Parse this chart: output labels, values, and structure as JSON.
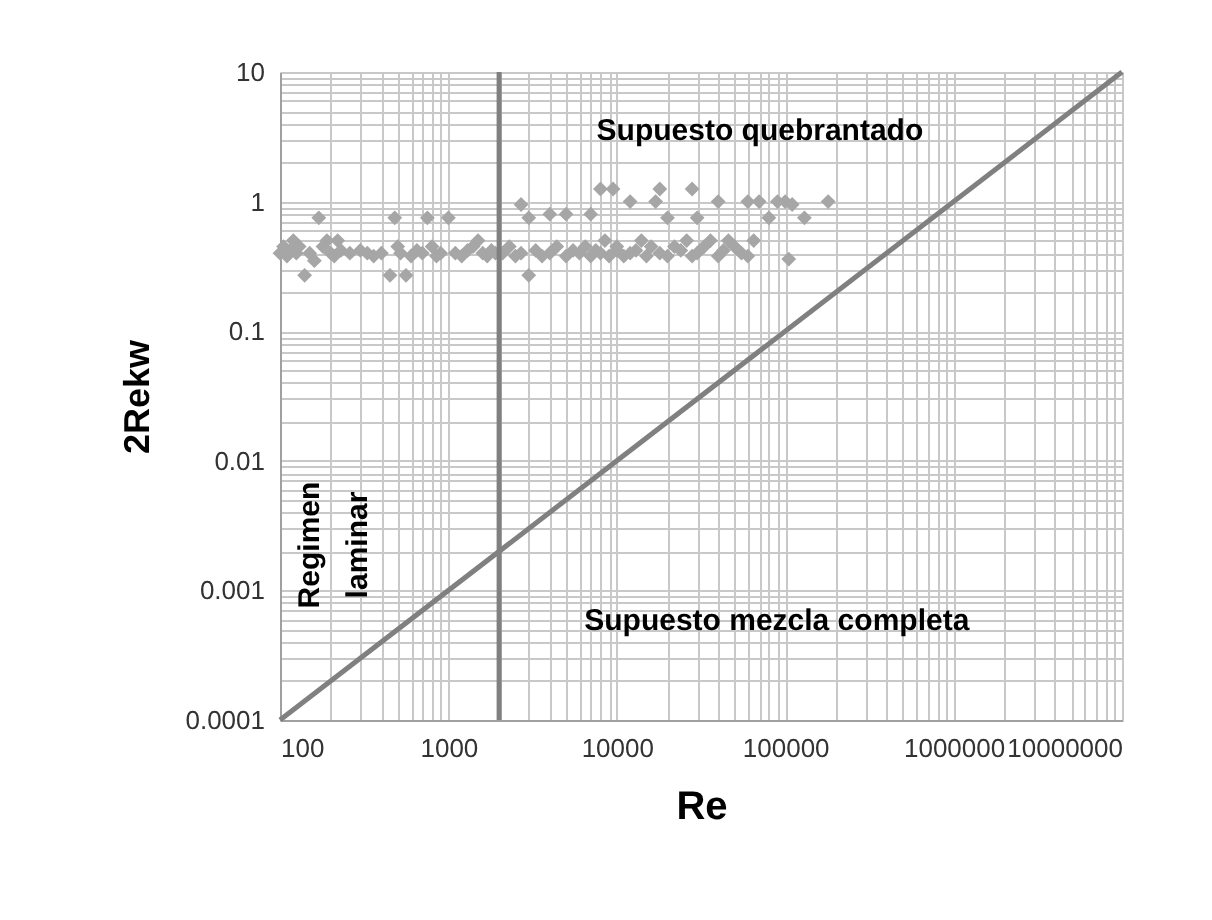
{
  "chart_data": {
    "type": "scatter",
    "xlabel": "Re",
    "ylabel": "2Rekw",
    "log": "xy",
    "grid": true,
    "xlim": [
      100,
      10000000
    ],
    "ylim": [
      0.0001,
      10
    ],
    "xticks": [
      100,
      {
        "value": 200,
        "label": null
      },
      {
        "value": 300,
        "label": null
      },
      {
        "value": 400,
        "label": null
      },
      {
        "value": 500,
        "label": null
      },
      {
        "value": 600,
        "label": null
      },
      {
        "value": 700,
        "label": null
      },
      {
        "value": 800,
        "label": null
      },
      {
        "value": 900,
        "label": null
      },
      1000,
      {
        "value": 2000,
        "label": null
      },
      {
        "value": 3000,
        "label": null
      },
      {
        "value": 4000,
        "label": null
      },
      {
        "value": 5000,
        "label": null
      },
      {
        "value": 6000,
        "label": null
      },
      {
        "value": 7000,
        "label": null
      },
      {
        "value": 8000,
        "label": null
      },
      {
        "value": 9000,
        "label": null
      },
      10000,
      {
        "value": 20000,
        "label": null
      },
      {
        "value": 30000,
        "label": null
      },
      {
        "value": 40000,
        "label": null
      },
      {
        "value": 50000,
        "label": null
      },
      {
        "value": 60000,
        "label": null
      },
      {
        "value": 70000,
        "label": null
      },
      {
        "value": 80000,
        "label": null
      },
      {
        "value": 90000,
        "label": null
      },
      100000,
      {
        "value": 200000,
        "label": null
      },
      {
        "value": 300000,
        "label": null
      },
      {
        "value": 400000,
        "label": null
      },
      {
        "value": 500000,
        "label": null
      },
      {
        "value": 600000,
        "label": null
      },
      {
        "value": 700000,
        "label": null
      },
      {
        "value": 800000,
        "label": null
      },
      {
        "value": 900000,
        "label": null
      },
      1000000,
      {
        "value": 2000000,
        "label": null
      },
      {
        "value": 3000000,
        "label": null
      },
      {
        "value": 4000000,
        "label": null
      },
      {
        "value": 5000000,
        "label": null
      },
      {
        "value": 6000000,
        "label": null
      },
      {
        "value": 7000000,
        "label": null
      },
      {
        "value": 8000000,
        "label": null
      },
      {
        "value": 9000000,
        "label": null
      },
      10000000
    ],
    "yticks": [
      0.0001,
      {
        "value": 0.0002,
        "label": null
      },
      {
        "value": 0.0003,
        "label": null
      },
      {
        "value": 0.0004,
        "label": null
      },
      {
        "value": 0.0005,
        "label": null
      },
      {
        "value": 0.0006,
        "label": null
      },
      {
        "value": 0.0007,
        "label": null
      },
      {
        "value": 0.0008,
        "label": null
      },
      {
        "value": 0.0009,
        "label": null
      },
      0.001,
      {
        "value": 0.002,
        "label": null
      },
      {
        "value": 0.003,
        "label": null
      },
      {
        "value": 0.004,
        "label": null
      },
      {
        "value": 0.005,
        "label": null
      },
      {
        "value": 0.006,
        "label": null
      },
      {
        "value": 0.007,
        "label": null
      },
      {
        "value": 0.008,
        "label": null
      },
      {
        "value": 0.009,
        "label": null
      },
      0.01,
      {
        "value": 0.02,
        "label": null
      },
      {
        "value": 0.03,
        "label": null
      },
      {
        "value": 0.04,
        "label": null
      },
      {
        "value": 0.05,
        "label": null
      },
      {
        "value": 0.06,
        "label": null
      },
      {
        "value": 0.07,
        "label": null
      },
      {
        "value": 0.08,
        "label": null
      },
      {
        "value": 0.09,
        "label": null
      },
      0.1,
      {
        "value": 0.2,
        "label": null
      },
      {
        "value": 0.3,
        "label": null
      },
      {
        "value": 0.4,
        "label": null
      },
      {
        "value": 0.5,
        "label": null
      },
      {
        "value": 0.6,
        "label": null
      },
      {
        "value": 0.7,
        "label": null
      },
      {
        "value": 0.8,
        "label": null
      },
      {
        "value": 0.9,
        "label": null
      },
      1,
      {
        "value": 2,
        "label": null
      },
      {
        "value": 3,
        "label": null
      },
      {
        "value": 4,
        "label": null
      },
      {
        "value": 5,
        "label": null
      },
      {
        "value": 6,
        "label": null
      },
      {
        "value": 7,
        "label": null
      },
      {
        "value": 8,
        "label": null
      },
      {
        "value": 9,
        "label": null
      },
      10
    ],
    "ref_lines": [
      {
        "axis": "x",
        "value": 2000,
        "color": "#808080"
      }
    ],
    "annotations": [
      "Supuesto quebrantado",
      "Supuesto mezcla completa",
      "Regimen laminar"
    ],
    "series": [
      {
        "color": "#a6a6a6",
        "marker": "diamond",
        "x": [
          100,
          105,
          110,
          115,
          120,
          125,
          130,
          140,
          150,
          160,
          170,
          180,
          190,
          200,
          210,
          220,
          230,
          260,
          300,
          330,
          360,
          400,
          450,
          480,
          500,
          520,
          560,
          600,
          650,
          700,
          750,
          800,
          850,
          900,
          1000,
          1100,
          1200,
          1300,
          1400,
          1500,
          1600,
          1700,
          1800,
          1900,
          2100,
          2300,
          2500,
          2700,
          2700,
          3000,
          3000,
          3300,
          3600,
          4000,
          4000,
          4400,
          5000,
          5000,
          5500,
          6000,
          6500,
          7000,
          7000,
          7500,
          8000,
          8000,
          8500,
          9000,
          9500,
          10000,
          10000,
          11000,
          12000,
          12000,
          13000,
          14000,
          15000,
          16000,
          17000,
          18000,
          18000,
          20000,
          20000,
          22000,
          24000,
          26000,
          28000,
          28000,
          30000,
          30000,
          33000,
          36000,
          40000,
          40000,
          43000,
          46000,
          50000,
          55000,
          60000,
          60000,
          65000,
          70000,
          80000,
          90000,
          100000,
          105000,
          110000,
          130000,
          180000
        ],
        "values": [
          0.4,
          0.45,
          0.38,
          0.42,
          0.5,
          0.4,
          0.45,
          0.27,
          0.4,
          0.35,
          0.75,
          0.45,
          0.5,
          0.4,
          0.38,
          0.5,
          0.42,
          0.4,
          0.42,
          0.4,
          0.38,
          0.4,
          0.27,
          0.75,
          0.45,
          0.4,
          0.27,
          0.38,
          0.42,
          0.4,
          0.75,
          0.45,
          0.38,
          0.4,
          0.75,
          0.4,
          0.38,
          0.42,
          0.45,
          0.5,
          0.4,
          0.38,
          0.42,
          0.4,
          0.4,
          0.45,
          0.38,
          0.95,
          0.4,
          0.27,
          0.75,
          0.42,
          0.38,
          0.8,
          0.4,
          0.45,
          0.8,
          0.38,
          0.42,
          0.4,
          0.45,
          0.8,
          0.38,
          0.42,
          1.25,
          0.4,
          0.5,
          0.38,
          1.25,
          0.42,
          0.45,
          0.38,
          1.0,
          0.4,
          0.42,
          0.5,
          0.38,
          0.45,
          1.0,
          1.25,
          0.4,
          0.75,
          0.38,
          0.45,
          0.42,
          0.5,
          1.25,
          0.38,
          0.75,
          0.4,
          0.45,
          0.5,
          1.0,
          0.38,
          0.42,
          0.5,
          0.45,
          0.4,
          1.0,
          0.38,
          0.5,
          1.0,
          0.75,
          1.0,
          1.0,
          0.36,
          0.95,
          0.75,
          1.0
        ]
      },
      {
        "type": "line",
        "color": "#808080",
        "line_style": "solid",
        "x": [
          100,
          10000000
        ],
        "values": [
          0.0001,
          10
        ]
      }
    ]
  }
}
